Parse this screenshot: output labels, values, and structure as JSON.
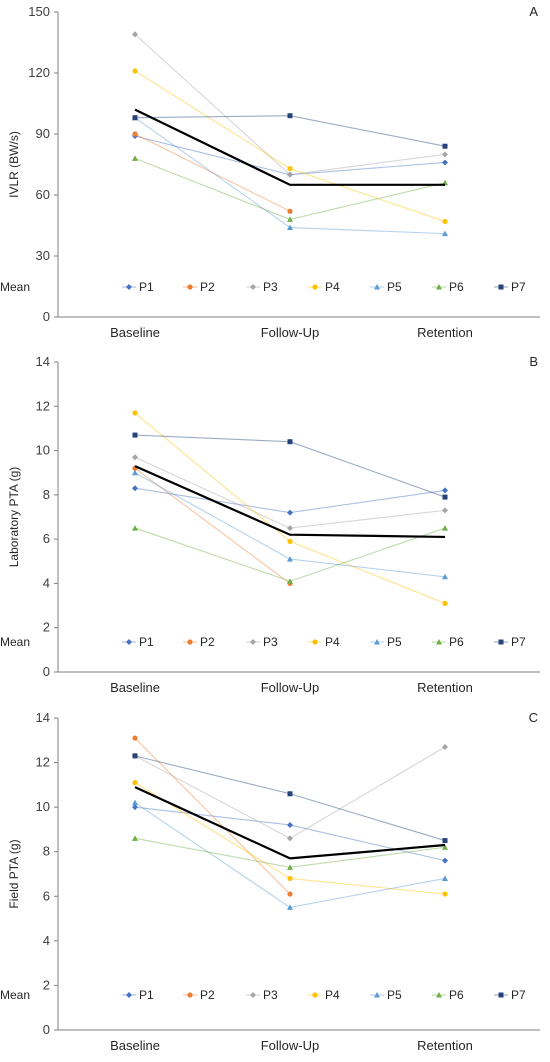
{
  "chart_data": [
    {
      "type": "line",
      "panel_label": "A",
      "ylabel": "IVLR (BW/s)",
      "categories": [
        "Baseline",
        "Follow-Up",
        "Retention"
      ],
      "ylim": [
        0,
        150
      ],
      "yticks": [
        0,
        30,
        60,
        90,
        120,
        150
      ],
      "series": [
        {
          "name": "P1",
          "values": [
            89,
            70,
            76
          ]
        },
        {
          "name": "P2",
          "values": [
            90,
            52,
            null
          ]
        },
        {
          "name": "P3",
          "values": [
            139,
            70,
            80
          ]
        },
        {
          "name": "P4",
          "values": [
            121,
            73,
            47
          ]
        },
        {
          "name": "P5",
          "values": [
            98,
            44,
            41
          ]
        },
        {
          "name": "P6",
          "values": [
            78,
            48,
            66
          ]
        },
        {
          "name": "P7",
          "values": [
            98,
            99,
            84
          ]
        },
        {
          "name": "Mean",
          "values": [
            102,
            65,
            65
          ]
        }
      ]
    },
    {
      "type": "line",
      "panel_label": "B",
      "ylabel": "Laboratory PTA (g)",
      "categories": [
        "Baseline",
        "Follow-Up",
        "Retention"
      ],
      "ylim": [
        0,
        14
      ],
      "yticks": [
        0,
        2,
        4,
        6,
        8,
        10,
        12,
        14
      ],
      "series": [
        {
          "name": "P1",
          "values": [
            8.3,
            7.2,
            8.2
          ]
        },
        {
          "name": "P2",
          "values": [
            9.2,
            4.0,
            null
          ]
        },
        {
          "name": "P3",
          "values": [
            9.7,
            6.5,
            7.3
          ]
        },
        {
          "name": "P4",
          "values": [
            11.7,
            5.9,
            3.1
          ]
        },
        {
          "name": "P5",
          "values": [
            9.0,
            5.1,
            4.3
          ]
        },
        {
          "name": "P6",
          "values": [
            6.5,
            4.1,
            6.5
          ]
        },
        {
          "name": "P7",
          "values": [
            10.7,
            10.4,
            7.9
          ]
        },
        {
          "name": "Mean",
          "values": [
            9.3,
            6.2,
            6.1
          ]
        }
      ]
    },
    {
      "type": "line",
      "panel_label": "C",
      "ylabel": "Field PTA (g)",
      "categories": [
        "Baseline",
        "Follow-Up",
        "Retention"
      ],
      "ylim": [
        0,
        14
      ],
      "yticks": [
        0,
        2,
        4,
        6,
        8,
        10,
        12,
        14
      ],
      "series": [
        {
          "name": "P1",
          "values": [
            10.0,
            9.2,
            7.6
          ]
        },
        {
          "name": "P2",
          "values": [
            13.1,
            6.1,
            null
          ]
        },
        {
          "name": "P3",
          "values": [
            12.3,
            8.6,
            12.7
          ]
        },
        {
          "name": "P4",
          "values": [
            11.1,
            6.8,
            6.1
          ]
        },
        {
          "name": "P5",
          "values": [
            10.2,
            5.5,
            6.8
          ]
        },
        {
          "name": "P6",
          "values": [
            8.6,
            7.3,
            8.2
          ]
        },
        {
          "name": "P7",
          "values": [
            12.3,
            10.6,
            8.5
          ]
        },
        {
          "name": "Mean",
          "values": [
            10.9,
            7.7,
            8.3
          ]
        }
      ]
    }
  ],
  "colors": {
    "P1": "#4472C4",
    "P2": "#ED7D31",
    "P3": "#A5A5A5",
    "P4": "#FFC000",
    "P5": "#5B9BD5",
    "P6": "#70AD47",
    "P7": "#264478",
    "Mean": "#000000"
  },
  "grid": false,
  "legend_position": "bottom-inside"
}
